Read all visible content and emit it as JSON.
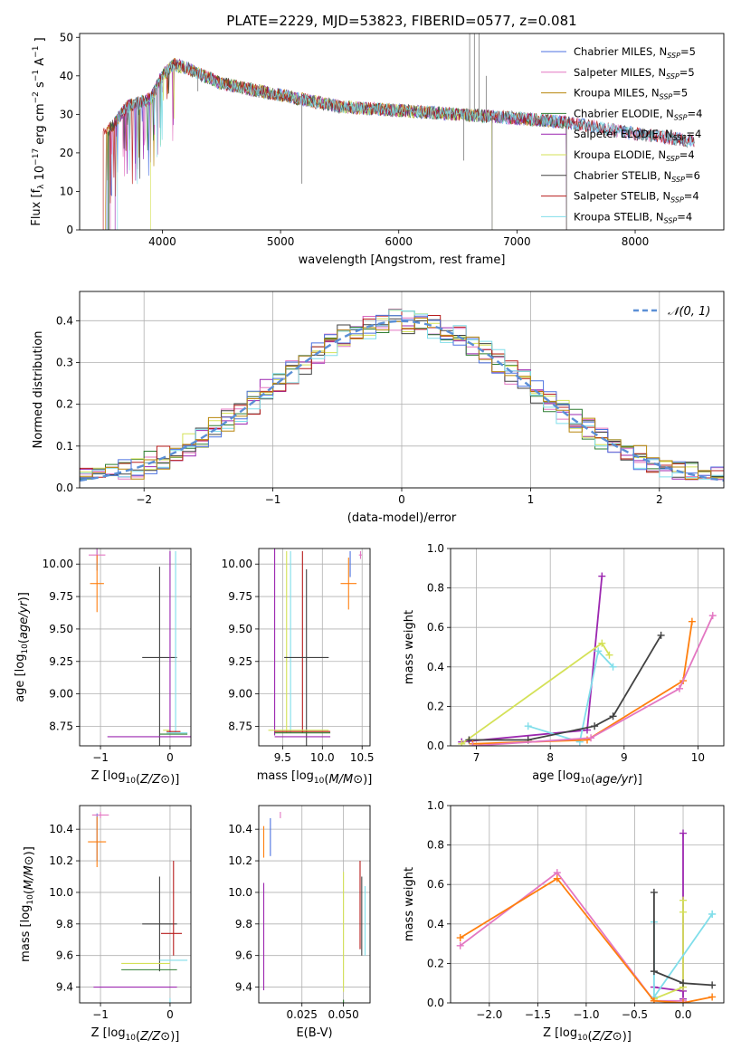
{
  "figure_title": "PLATE=2229, MJD=53823, FIBERID=0577, z=0.081",
  "chart_data": [
    {
      "id": "spectrum",
      "type": "line",
      "xlabel": "wavelength [Angstrom, rest frame]",
      "ylabel": "Flux [f_λ 10^-17 erg cm^-2 s^-1 A^-1]",
      "xlim": [
        3300,
        8750
      ],
      "ylim": [
        0,
        51
      ],
      "xticks": [
        4000,
        5000,
        6000,
        7000,
        8000
      ],
      "yticks": [
        0,
        10,
        20,
        30,
        40,
        50
      ],
      "grid": false,
      "legend_position": "top-right",
      "data_profile": {
        "x": [
          3550,
          3700,
          3800,
          3900,
          4000,
          4100,
          4200,
          4500,
          5000,
          5500,
          6000,
          6500,
          7000,
          7400,
          8000,
          8500
        ],
        "flux": [
          26,
          32,
          33,
          34,
          40,
          43,
          42,
          38,
          35,
          32,
          31,
          30,
          29,
          28,
          25,
          23
        ],
        "spikes": [
          [
            3650,
            31
          ],
          [
            3700,
            29
          ],
          [
            4300,
            36
          ],
          [
            4860,
            35
          ],
          [
            5180,
            12
          ],
          [
            6550,
            18
          ],
          [
            6600,
            51
          ],
          [
            6640,
            51
          ],
          [
            6680,
            51
          ],
          [
            6740,
            40
          ],
          [
            6790,
            0
          ],
          [
            7420,
            0
          ]
        ]
      },
      "series": [
        {
          "name": "Chabrier MILES, N_SSP=5",
          "color": "#4c72e0",
          "label_main": "Chabrier MILES, N",
          "label_sub": "SSP",
          "label_tail": "=5"
        },
        {
          "name": "Salpeter MILES, N_SSP=5",
          "color": "#e377c2",
          "label_main": "Salpeter MILES, N",
          "label_sub": "SSP",
          "label_tail": "=5"
        },
        {
          "name": "Kroupa MILES, N_SSP=5",
          "color": "#b8860b",
          "label_main": "Kroupa MILES, N",
          "label_sub": "SSP",
          "label_tail": "=5"
        },
        {
          "name": "Chabrier ELODIE, N_SSP=4",
          "color": "#2e7d32",
          "label_main": "Chabrier ELODIE, N",
          "label_sub": "SSP",
          "label_tail": "=4"
        },
        {
          "name": "Salpeter ELODIE, N_SSP=4",
          "color": "#9c27b0",
          "label_main": "Salpeter ELODIE, N",
          "label_sub": "SSP",
          "label_tail": "=4"
        },
        {
          "name": "Kroupa ELODIE, N_SSP=4",
          "color": "#d4e157",
          "label_main": "Kroupa ELODIE, N",
          "label_sub": "SSP",
          "label_tail": "=4"
        },
        {
          "name": "Chabrier STELIB, N_SSP=6",
          "color": "#424242",
          "label_main": "Chabrier STELIB, N",
          "label_sub": "SSP",
          "label_tail": "=6"
        },
        {
          "name": "Salpeter STELIB, N_SSP=4",
          "color": "#b71c1c",
          "label_main": "Salpeter STELIB, N",
          "label_sub": "SSP",
          "label_tail": "=4"
        },
        {
          "name": "Kroupa STELIB, N_SSP=4",
          "color": "#80deea",
          "label_main": "Kroupa STELIB, N",
          "label_sub": "SSP",
          "label_tail": "=4"
        }
      ]
    },
    {
      "id": "residuals",
      "type": "line",
      "xlabel": "(data-model)/error",
      "ylabel": "Normed distribution",
      "xlim": [
        -2.5,
        2.5
      ],
      "ylim": [
        0,
        0.47
      ],
      "xticks": [
        -2,
        -1,
        0,
        1,
        2
      ],
      "yticks": [
        0.0,
        0.1,
        0.2,
        0.3,
        0.4
      ],
      "grid": true,
      "legend_position": "top-right",
      "legend_label": "𝒩(0, 1)",
      "gaussian_color": "#5b8fd6",
      "bin_width": 0.1,
      "histogram_colors": [
        "#9c27b0",
        "#e377c2",
        "#2e7d32",
        "#d4e157",
        "#424242",
        "#b71c1c",
        "#80deea",
        "#4c72e0",
        "#b8860b"
      ]
    },
    {
      "id": "age-vs-Z",
      "type": "scatter",
      "xlabel": "Z [log10(Z/Z⊙)]",
      "ylabel": "age [log10(age/yr)]",
      "xlim": [
        -1.3,
        0.3
      ],
      "ylim": [
        8.6,
        10.12
      ],
      "xticks": [
        -1,
        0
      ],
      "yticks": [
        8.75,
        9.0,
        9.25,
        9.5,
        9.75,
        10.0
      ],
      "grid": true,
      "points": [
        {
          "x": -1.05,
          "y": 10.05,
          "xerr": 0.0,
          "yerr": 0.1,
          "color": "#4c72e0"
        },
        {
          "x": -1.05,
          "y": 10.07,
          "xerr": 0.12,
          "yerr": 0.05,
          "color": "#e377c2"
        },
        {
          "x": -1.05,
          "y": 9.85,
          "xerr": 0.1,
          "yerr": 0.22,
          "color": "#ff7f0e"
        },
        {
          "x": -0.15,
          "y": 9.28,
          "xerr": 0.25,
          "yerr": 0.7,
          "color": "#424242"
        },
        {
          "x": -0.05,
          "y": 8.72,
          "xerr": 0.05,
          "yerr": 0.0,
          "color": "#d4e157"
        },
        {
          "x": -0.1,
          "y": 8.67,
          "xerr": 0.8,
          "yerr": 0.0,
          "color": "#9c27b0"
        },
        {
          "x": 0.0,
          "y": 9.4,
          "xerr": 0.0,
          "yerr": 0.7,
          "color": "#9c27b0"
        },
        {
          "x": 0.08,
          "y": 9.4,
          "xerr": 0.0,
          "yerr": 0.7,
          "color": "#80deea"
        },
        {
          "x": 0.1,
          "y": 8.7,
          "xerr": 0.15,
          "yerr": 0.0,
          "color": "#80deea"
        },
        {
          "x": 0.05,
          "y": 8.69,
          "xerr": 0.2,
          "yerr": 0.0,
          "color": "#2e7d32"
        },
        {
          "x": 0.05,
          "y": 8.71,
          "xerr": 0.1,
          "yerr": 0.0,
          "color": "#b71c1c"
        }
      ]
    },
    {
      "id": "age-vs-mass",
      "type": "scatter",
      "xlabel": "mass [log10(M/M⊙)]",
      "ylabel": "",
      "xlim": [
        9.2,
        10.6
      ],
      "ylim": [
        8.6,
        10.12
      ],
      "xticks": [
        9.5,
        10.0,
        10.5
      ],
      "yticks": [
        8.75,
        9.0,
        9.25,
        9.5,
        9.75,
        10.0
      ],
      "grid": true,
      "points": [
        {
          "x": 9.4,
          "y": 9.4,
          "xerr": 0.0,
          "yerr": 0.72,
          "color": "#9c27b0"
        },
        {
          "x": 9.55,
          "y": 9.4,
          "xerr": 0.0,
          "yerr": 0.7,
          "color": "#d4e157"
        },
        {
          "x": 9.6,
          "y": 9.4,
          "xerr": 0.0,
          "yerr": 0.7,
          "color": "#80deea"
        },
        {
          "x": 9.75,
          "y": 9.4,
          "xerr": 0.0,
          "yerr": 0.7,
          "color": "#b71c1c"
        },
        {
          "x": 9.8,
          "y": 9.28,
          "xerr": 0.28,
          "yerr": 0.68,
          "color": "#424242"
        },
        {
          "x": 9.7,
          "y": 8.72,
          "xerr": 0.38,
          "yerr": 0.0,
          "color": "#d4e157"
        },
        {
          "x": 9.75,
          "y": 8.7,
          "xerr": 0.35,
          "yerr": 0.0,
          "color": "#2e7d32"
        },
        {
          "x": 9.75,
          "y": 8.71,
          "xerr": 0.35,
          "yerr": 0.0,
          "color": "#b71c1c"
        },
        {
          "x": 9.75,
          "y": 8.67,
          "xerr": 0.35,
          "yerr": 0.0,
          "color": "#9c27b0"
        },
        {
          "x": 10.33,
          "y": 9.85,
          "xerr": 0.1,
          "yerr": 0.2,
          "color": "#ff7f0e"
        },
        {
          "x": 10.35,
          "y": 10.0,
          "xerr": 0.0,
          "yerr": 0.1,
          "color": "#4c72e0"
        },
        {
          "x": 10.48,
          "y": 10.07,
          "xerr": 0.02,
          "yerr": 0.03,
          "color": "#e377c2"
        }
      ]
    },
    {
      "id": "weight-vs-age",
      "type": "line",
      "xlabel": "age [log10(age/yr)]",
      "ylabel": "mass weight",
      "xlim": [
        6.65,
        10.35
      ],
      "ylim": [
        0,
        1.0
      ],
      "xticks": [
        7,
        8,
        9,
        10
      ],
      "yticks": [
        0.0,
        0.2,
        0.4,
        0.6,
        0.8,
        1.0
      ],
      "grid": true,
      "series": [
        {
          "color": "#9c27b0",
          "x": [
            6.8,
            8.5,
            8.7
          ],
          "y": [
            0.02,
            0.08,
            0.86
          ]
        },
        {
          "color": "#d4e157",
          "x": [
            6.8,
            8.7,
            8.8
          ],
          "y": [
            0.01,
            0.52,
            0.46
          ]
        },
        {
          "color": "#80deea",
          "x": [
            7.7,
            8.4,
            8.65,
            8.85
          ],
          "y": [
            0.1,
            0.02,
            0.48,
            0.4
          ]
        },
        {
          "color": "#424242",
          "x": [
            6.9,
            7.7,
            8.6,
            8.85,
            9.5
          ],
          "y": [
            0.03,
            0.03,
            0.1,
            0.15,
            0.56
          ]
        },
        {
          "color": "#ff7f0e",
          "x": [
            6.95,
            8.5,
            9.8,
            9.92
          ],
          "y": [
            0.01,
            0.03,
            0.33,
            0.63
          ]
        },
        {
          "color": "#e377c2",
          "x": [
            6.95,
            8.55,
            9.75,
            10.2
          ],
          "y": [
            0.0,
            0.04,
            0.29,
            0.66
          ]
        }
      ]
    },
    {
      "id": "mass-vs-Z",
      "type": "scatter",
      "xlabel": "Z [log10(Z/Z⊙)]",
      "ylabel": "mass [log10(M/M⊙)]",
      "xlim": [
        -1.3,
        0.3
      ],
      "ylim": [
        9.3,
        10.55
      ],
      "xticks": [
        -1,
        0
      ],
      "yticks": [
        9.4,
        9.6,
        9.8,
        10.0,
        10.2,
        10.4
      ],
      "grid": true,
      "points": [
        {
          "x": -1.05,
          "y": 10.35,
          "xerr": 0.0,
          "yerr": 0.15,
          "color": "#4c72e0"
        },
        {
          "x": -1.0,
          "y": 10.49,
          "xerr": 0.12,
          "yerr": 0.02,
          "color": "#e377c2"
        },
        {
          "x": -1.05,
          "y": 10.32,
          "xerr": 0.13,
          "yerr": 0.16,
          "color": "#ff7f0e"
        },
        {
          "x": -0.15,
          "y": 9.8,
          "xerr": 0.25,
          "yerr": 0.3,
          "color": "#424242"
        },
        {
          "x": 0.05,
          "y": 9.9,
          "xerr": 0.0,
          "yerr": 0.3,
          "color": "#b71c1c"
        },
        {
          "x": 0.02,
          "y": 9.74,
          "xerr": 0.15,
          "yerr": 0.0,
          "color": "#b71c1c"
        },
        {
          "x": 0.05,
          "y": 9.57,
          "xerr": 0.2,
          "yerr": 0.0,
          "color": "#80deea"
        },
        {
          "x": -0.35,
          "y": 9.55,
          "xerr": 0.35,
          "yerr": 0.0,
          "color": "#d4e157"
        },
        {
          "x": -0.3,
          "y": 9.51,
          "xerr": 0.4,
          "yerr": 0.0,
          "color": "#2e7d32"
        },
        {
          "x": 0.0,
          "y": 9.31,
          "xerr": 0.0,
          "yerr": 0.02,
          "color": "#80deea"
        },
        {
          "x": -0.5,
          "y": 9.4,
          "xerr": 0.6,
          "yerr": 0.0,
          "color": "#9c27b0"
        }
      ]
    },
    {
      "id": "mass-vs-ebv",
      "type": "scatter",
      "xlabel": "E(B-V)",
      "ylabel": "",
      "xlim": [
        -0.001,
        0.066
      ],
      "ylim": [
        9.3,
        10.55
      ],
      "xticks": [
        0.025,
        0.05
      ],
      "xtick_labels": [
        "0.025",
        "0.050"
      ],
      "yticks": [
        9.4,
        9.6,
        9.8,
        10.0,
        10.2,
        10.4
      ],
      "grid": true,
      "points": [
        {
          "x": 0.002,
          "y": 9.72,
          "xerr": 0.0,
          "yerr": 0.34,
          "color": "#9c27b0"
        },
        {
          "x": 0.002,
          "y": 10.32,
          "xerr": 0.0,
          "yerr": 0.1,
          "color": "#ff7f0e"
        },
        {
          "x": 0.006,
          "y": 10.35,
          "xerr": 0.0,
          "yerr": 0.12,
          "color": "#4c72e0"
        },
        {
          "x": 0.012,
          "y": 10.49,
          "xerr": 0.0,
          "yerr": 0.02,
          "color": "#e377c2"
        },
        {
          "x": 0.05,
          "y": 9.3,
          "xerr": 0.0,
          "yerr": 0.02,
          "color": "#2e7d32"
        },
        {
          "x": 0.05,
          "y": 9.75,
          "xerr": 0.0,
          "yerr": 0.38,
          "color": "#d4e157"
        },
        {
          "x": 0.06,
          "y": 9.92,
          "xerr": 0.0,
          "yerr": 0.28,
          "color": "#b71c1c"
        },
        {
          "x": 0.061,
          "y": 9.85,
          "xerr": 0.0,
          "yerr": 0.25,
          "color": "#424242"
        },
        {
          "x": 0.063,
          "y": 9.82,
          "xerr": 0.0,
          "yerr": 0.22,
          "color": "#80deea"
        }
      ]
    },
    {
      "id": "weight-vs-Z",
      "type": "line",
      "xlabel": "Z [log10(Z/Z⊙)]",
      "ylabel": "mass weight",
      "xlim": [
        -2.4,
        0.42
      ],
      "ylim": [
        0,
        1.0
      ],
      "xticks": [
        -2.0,
        -1.5,
        -1.0,
        -0.5,
        0.0
      ],
      "xtick_labels": [
        "−2.0",
        "−1.5",
        "−1.0",
        "−0.5",
        "0.0"
      ],
      "yticks": [
        0.0,
        0.2,
        0.4,
        0.6,
        0.8,
        1.0
      ],
      "grid": true,
      "series": [
        {
          "color": "#9c27b0",
          "x": [
            -0.3,
            0.0,
            0.0,
            0.0
          ],
          "y": [
            0.08,
            0.06,
            0.86,
            0.02
          ]
        },
        {
          "color": "#d4e157",
          "x": [
            -0.3,
            0.0,
            0.0,
            0.0
          ],
          "y": [
            0.02,
            0.08,
            0.52,
            0.46
          ]
        },
        {
          "color": "#80deea",
          "x": [
            -0.3,
            -0.3,
            0.3,
            0.3
          ],
          "y": [
            0.41,
            0.03,
            0.45,
            0.45
          ]
        },
        {
          "color": "#424242",
          "x": [
            -0.3,
            -0.3,
            0.0,
            0.3
          ],
          "y": [
            0.56,
            0.16,
            0.1,
            0.09
          ]
        },
        {
          "color": "#e377c2",
          "x": [
            -2.3,
            -1.3,
            -0.3,
            0.0
          ],
          "y": [
            0.29,
            0.66,
            0.01,
            0.01
          ]
        },
        {
          "color": "#ff7f0e",
          "x": [
            -2.3,
            -1.3,
            -0.3,
            0.0,
            0.3
          ],
          "y": [
            0.33,
            0.63,
            0.01,
            0.0,
            0.03
          ]
        }
      ]
    }
  ]
}
